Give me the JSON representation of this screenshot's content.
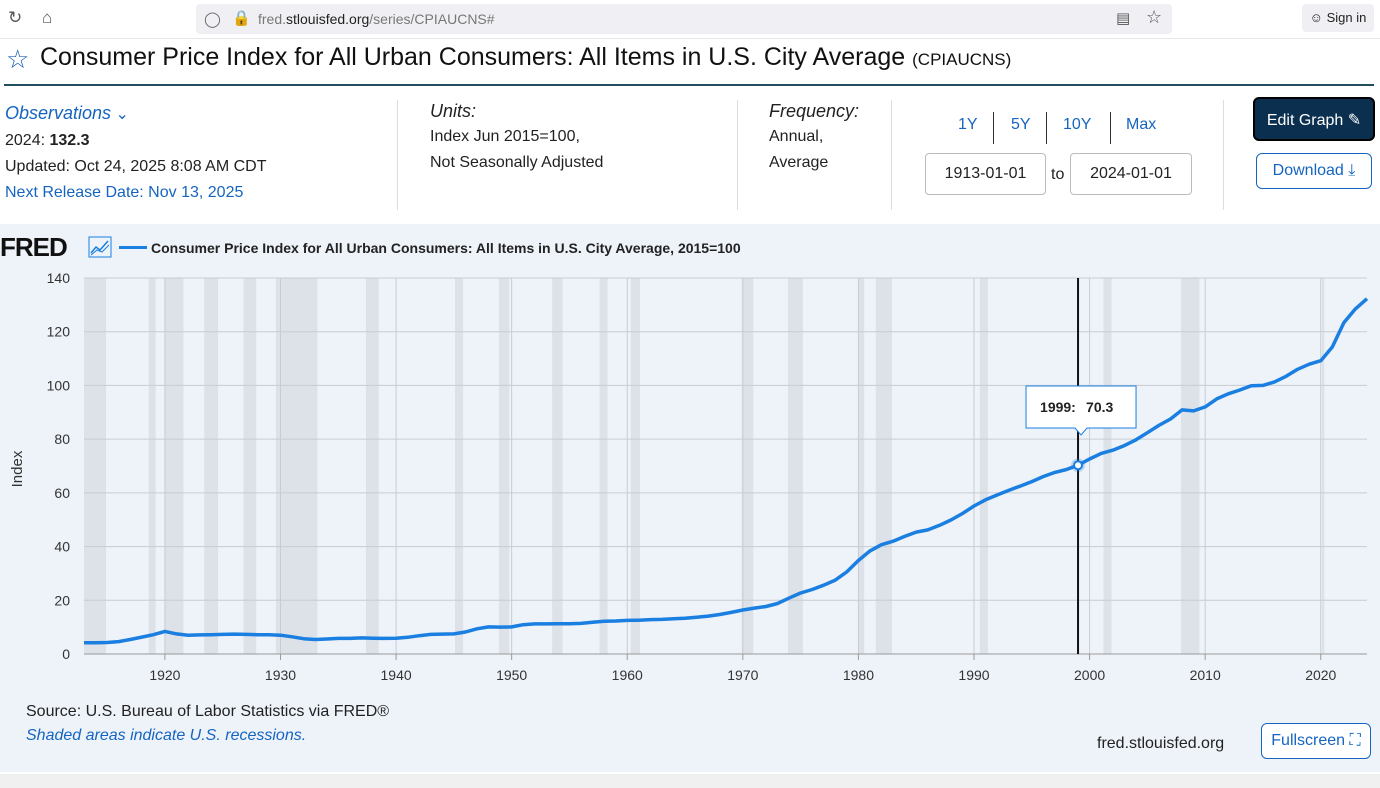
{
  "browser": {
    "url_prefix": "fred.",
    "url_domain": "stlouisfed.org",
    "url_path": "/series/CPIAUCNS#",
    "sign_in": "Sign in"
  },
  "header": {
    "title": "Consumer Price Index for All Urban Consumers: All Items in U.S. City Average",
    "code": "(CPIAUCNS)"
  },
  "observations": {
    "label": "Observations",
    "year_label": "2024:",
    "year_value": "132.3",
    "updated": "Updated: Oct 24, 2025 8:08 AM CDT",
    "next_release": "Next Release Date: Nov 13, 2025"
  },
  "units": {
    "label": "Units:",
    "line1": "Index Jun 2015=100,",
    "line2": "Not Seasonally Adjusted"
  },
  "frequency": {
    "label": "Frequency:",
    "line1": "Annual,",
    "line2": "Average"
  },
  "range": {
    "buttons": [
      "1Y",
      "5Y",
      "10Y",
      "Max"
    ],
    "start": "1913-01-01",
    "to": "to",
    "end": "2024-01-01"
  },
  "actions": {
    "edit_graph": "Edit Graph",
    "download": "Download",
    "fullscreen": "Fullscreen"
  },
  "chart_meta": {
    "logo": "FRED",
    "source": "Source: U.S. Bureau of Labor Statistics via FRED®",
    "shaded_note": "Shaded areas indicate U.S. recessions.",
    "site": "fred.stlouisfed.org"
  },
  "colors": {
    "line": "#1a7fe0",
    "recession": "#dde2e8",
    "button_dark": "#0b2f4e",
    "link": "#1565c0"
  },
  "chart_data": {
    "type": "line",
    "title": "Consumer Price Index for All Urban Consumers: All Items in U.S. City Average, 2015=100",
    "ylabel": "Index",
    "xlabel": "",
    "xlim": [
      1913,
      2024
    ],
    "ylim": [
      0,
      140
    ],
    "yticks": [
      0,
      20,
      40,
      60,
      80,
      100,
      120,
      140
    ],
    "xticks": [
      1920,
      1930,
      1940,
      1950,
      1960,
      1970,
      1980,
      1990,
      2000,
      2010,
      2020
    ],
    "series": [
      {
        "name": "Consumer Price Index for All Urban Consumers: All Items in U.S. City Average, 2015=100",
        "x": [
          1913,
          1914,
          1915,
          1916,
          1917,
          1918,
          1919,
          1920,
          1921,
          1922,
          1923,
          1924,
          1925,
          1926,
          1927,
          1928,
          1929,
          1930,
          1931,
          1932,
          1933,
          1934,
          1935,
          1936,
          1937,
          1938,
          1939,
          1940,
          1941,
          1942,
          1943,
          1944,
          1945,
          1946,
          1947,
          1948,
          1949,
          1950,
          1951,
          1952,
          1953,
          1954,
          1955,
          1956,
          1957,
          1958,
          1959,
          1960,
          1961,
          1962,
          1963,
          1964,
          1965,
          1966,
          1967,
          1968,
          1969,
          1970,
          1971,
          1972,
          1973,
          1974,
          1975,
          1976,
          1977,
          1978,
          1979,
          1980,
          1981,
          1982,
          1983,
          1984,
          1985,
          1986,
          1987,
          1988,
          1989,
          1990,
          1991,
          1992,
          1993,
          1994,
          1995,
          1996,
          1997,
          1998,
          1999,
          2000,
          2001,
          2002,
          2003,
          2004,
          2005,
          2006,
          2007,
          2008,
          2009,
          2010,
          2011,
          2012,
          2013,
          2014,
          2015,
          2016,
          2017,
          2018,
          2019,
          2020,
          2021,
          2022,
          2023,
          2024
        ],
        "values": [
          4.2,
          4.2,
          4.3,
          4.6,
          5.4,
          6.3,
          7.2,
          8.4,
          7.5,
          7.0,
          7.1,
          7.2,
          7.3,
          7.4,
          7.3,
          7.2,
          7.2,
          7.0,
          6.4,
          5.7,
          5.4,
          5.6,
          5.8,
          5.8,
          6.0,
          5.9,
          5.8,
          5.9,
          6.2,
          6.8,
          7.3,
          7.4,
          7.5,
          8.2,
          9.4,
          10.1,
          10.0,
          10.1,
          10.9,
          11.2,
          11.2,
          11.3,
          11.3,
          11.4,
          11.8,
          12.2,
          12.3,
          12.5,
          12.6,
          12.8,
          12.9,
          13.1,
          13.3,
          13.7,
          14.1,
          14.7,
          15.5,
          16.4,
          17.1,
          17.7,
          18.8,
          20.8,
          22.7,
          24.0,
          25.6,
          27.5,
          30.6,
          34.8,
          38.4,
          40.7,
          42.0,
          43.8,
          45.4,
          46.2,
          47.9,
          49.9,
          52.3,
          55.1,
          57.4,
          59.2,
          60.9,
          62.5,
          64.2,
          66.1,
          67.6,
          68.7,
          70.3,
          72.6,
          74.7,
          75.9,
          77.6,
          79.7,
          82.4,
          85.1,
          87.5,
          90.9,
          90.5,
          92.0,
          95.0,
          96.9,
          98.3,
          99.9,
          100.0,
          101.3,
          103.4,
          106.0,
          107.9,
          109.2,
          114.3,
          123.4,
          128.5,
          132.3
        ]
      }
    ],
    "recessions": [
      [
        1913.0,
        1914.9
      ],
      [
        1918.6,
        1919.2
      ],
      [
        1920.0,
        1921.6
      ],
      [
        1923.4,
        1924.6
      ],
      [
        1926.8,
        1927.9
      ],
      [
        1929.6,
        1933.2
      ],
      [
        1937.4,
        1938.5
      ],
      [
        1945.1,
        1945.8
      ],
      [
        1948.9,
        1949.8
      ],
      [
        1953.5,
        1954.4
      ],
      [
        1957.6,
        1958.3
      ],
      [
        1960.3,
        1961.1
      ],
      [
        1969.9,
        1970.9
      ],
      [
        1973.9,
        1975.2
      ],
      [
        1980.0,
        1980.5
      ],
      [
        1981.5,
        1982.9
      ],
      [
        1990.5,
        1991.2
      ],
      [
        2001.2,
        2001.9
      ],
      [
        2007.9,
        2009.5
      ],
      [
        2020.1,
        2020.3
      ]
    ],
    "tooltip": {
      "label": "1999:",
      "value": "70.3",
      "x": 1999
    }
  }
}
